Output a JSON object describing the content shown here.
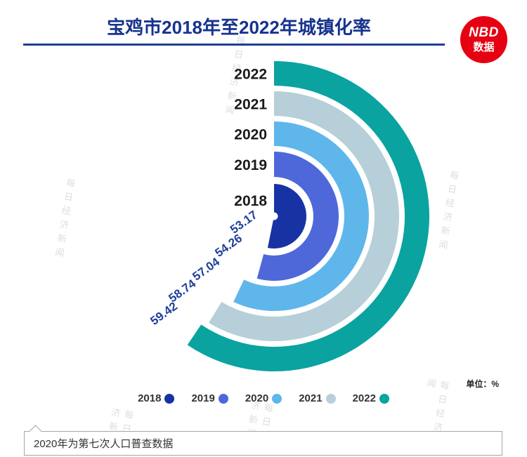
{
  "header": {
    "title": "宝鸡市2018年至2022年城镇化率",
    "logo": {
      "line1": "NBD",
      "line2": "数据"
    }
  },
  "chart_data": {
    "type": "bar",
    "layout": "polar-radial",
    "title": "宝鸡市2018年至2022年城镇化率",
    "unit": "单位：%",
    "categories": [
      "2018",
      "2019",
      "2020",
      "2021",
      "2022"
    ],
    "values": [
      53.17,
      54.26,
      57.04,
      58.74,
      59.42
    ],
    "colors": [
      "#1733a3",
      "#4e68d9",
      "#5fb6eb",
      "#b6cfd8",
      "#0aa3a0"
    ],
    "scale": {
      "min": 0,
      "max": 100,
      "start_angle_deg": 0,
      "direction": "clockwise",
      "full_circle_deg": 360
    },
    "legend_position": "bottom",
    "grid": false
  },
  "legend": [
    {
      "label": "2018",
      "color": "#1733a3"
    },
    {
      "label": "2019",
      "color": "#4e68d9"
    },
    {
      "label": "2020",
      "color": "#5fb6eb"
    },
    {
      "label": "2021",
      "color": "#b6cfd8"
    },
    {
      "label": "2022",
      "color": "#0aa3a0"
    }
  ],
  "note": {
    "text": "2020年为第七次人口普查数据"
  },
  "watermark": "每日经济新闻"
}
